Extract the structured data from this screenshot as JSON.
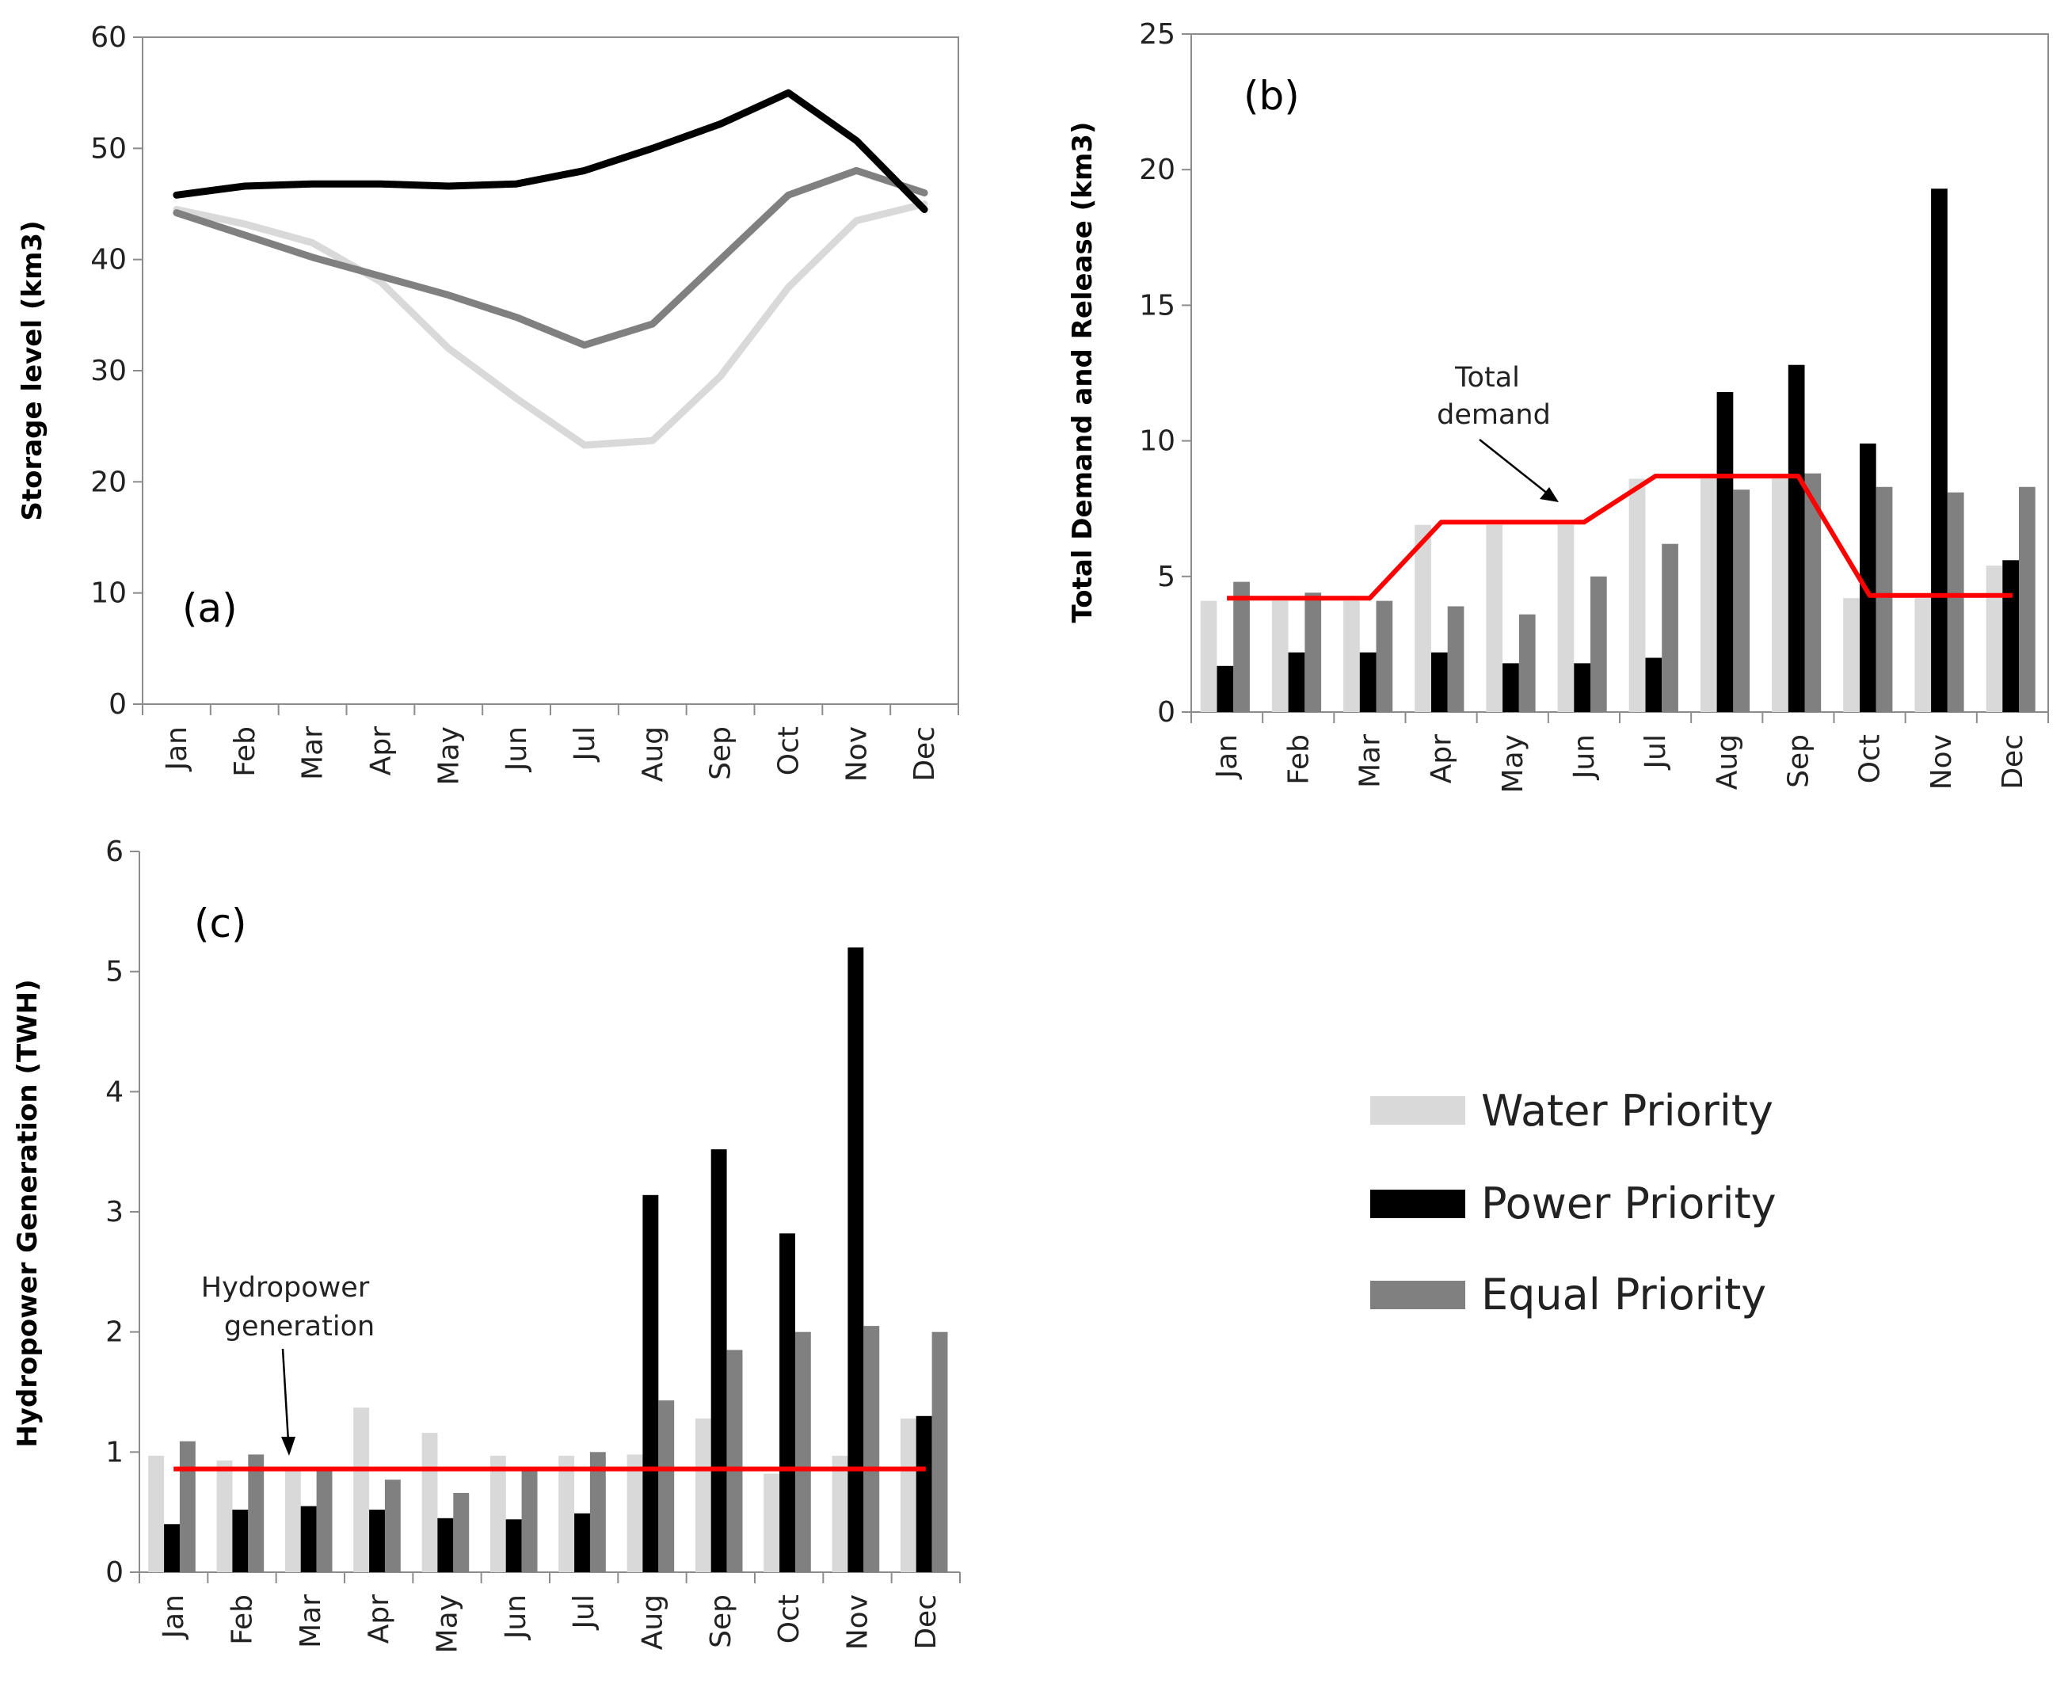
{
  "legend": [
    {
      "label": "Water Priority",
      "color": "#d9d9d9"
    },
    {
      "label": "Power Priority",
      "color": "#000000"
    },
    {
      "label": "Equal Priority",
      "color": "#808080"
    }
  ],
  "chart_data": [
    {
      "type": "line",
      "panel": "(a)",
      "title": "",
      "xlabel": "",
      "ylabel": "Storage level (km3)",
      "ylim": [
        0,
        60
      ],
      "yticks": [
        0,
        10,
        20,
        30,
        40,
        50,
        60
      ],
      "categories": [
        "Jan",
        "Feb",
        "Mar",
        "Apr",
        "May",
        "Jun",
        "Jul",
        "Aug",
        "Sep",
        "Oct",
        "Nov",
        "Dec"
      ],
      "series": [
        {
          "name": "Water Priority",
          "color": "#d9d9d9",
          "values": [
            44.5,
            43.2,
            41.5,
            38.0,
            32.0,
            27.5,
            23.3,
            23.7,
            29.5,
            37.5,
            43.5,
            45.0
          ]
        },
        {
          "name": "Power Priority",
          "color": "#000000",
          "values": [
            45.8,
            46.6,
            46.8,
            46.8,
            46.6,
            46.8,
            48.0,
            50.0,
            52.2,
            55.0,
            50.7,
            44.5
          ]
        },
        {
          "name": "Equal Priority",
          "color": "#808080",
          "values": [
            44.2,
            42.2,
            40.2,
            38.5,
            36.8,
            34.8,
            32.3,
            34.2,
            40.0,
            45.8,
            48.0,
            46.0
          ]
        }
      ]
    },
    {
      "type": "bar",
      "panel": "(b)",
      "title": "",
      "xlabel": "",
      "ylabel": "Total Demand and Release (km3)",
      "ylim": [
        0,
        25
      ],
      "yticks": [
        0,
        5,
        10,
        15,
        20,
        25
      ],
      "categories": [
        "Jan",
        "Feb",
        "Mar",
        "Apr",
        "May",
        "Jun",
        "Jul",
        "Aug",
        "Sep",
        "Oct",
        "Nov",
        "Dec"
      ],
      "series": [
        {
          "name": "Water Priority",
          "color": "#d9d9d9",
          "values": [
            4.1,
            4.1,
            4.1,
            6.9,
            6.9,
            6.9,
            8.6,
            8.6,
            8.6,
            4.2,
            4.2,
            5.4
          ]
        },
        {
          "name": "Power Priority",
          "color": "#000000",
          "values": [
            1.7,
            2.2,
            2.2,
            2.2,
            1.8,
            1.8,
            2.0,
            11.8,
            12.8,
            9.9,
            19.3,
            5.6
          ]
        },
        {
          "name": "Equal Priority",
          "color": "#808080",
          "values": [
            4.8,
            4.4,
            4.1,
            3.9,
            3.6,
            5.0,
            6.2,
            8.2,
            8.8,
            8.3,
            8.1,
            8.3
          ]
        }
      ],
      "reference_line": {
        "name": "Total demand",
        "color": "#ff0000",
        "values": [
          4.2,
          4.2,
          4.2,
          7.0,
          7.0,
          7.0,
          8.7,
          8.7,
          8.7,
          4.3,
          4.3,
          4.3
        ]
      },
      "annotation": {
        "lines": [
          "Total",
          "demand"
        ]
      }
    },
    {
      "type": "bar",
      "panel": "(c)",
      "title": "",
      "xlabel": "",
      "ylabel": "Hydropower Generation (TWH)",
      "ylim": [
        0,
        6
      ],
      "yticks": [
        0,
        1,
        2,
        3,
        4,
        5,
        6
      ],
      "categories": [
        "Jan",
        "Feb",
        "Mar",
        "Apr",
        "May",
        "Jun",
        "Jul",
        "Aug",
        "Sep",
        "Oct",
        "Nov",
        "Dec"
      ],
      "series": [
        {
          "name": "Water Priority",
          "color": "#d9d9d9",
          "values": [
            0.97,
            0.93,
            0.85,
            1.37,
            1.16,
            0.97,
            0.97,
            0.98,
            1.28,
            0.82,
            0.97,
            1.28
          ]
        },
        {
          "name": "Power Priority",
          "color": "#000000",
          "values": [
            0.4,
            0.52,
            0.55,
            0.52,
            0.45,
            0.44,
            0.49,
            3.14,
            3.52,
            2.82,
            5.2,
            1.3
          ]
        },
        {
          "name": "Equal Priority",
          "color": "#808080",
          "values": [
            1.09,
            0.98,
            0.85,
            0.77,
            0.66,
            0.85,
            1.0,
            1.43,
            1.85,
            2.0,
            2.05,
            2.0
          ]
        }
      ],
      "reference_line": {
        "name": "Hydropower generation",
        "color": "#ff0000",
        "values": [
          0.86,
          0.86,
          0.86,
          0.86,
          0.86,
          0.86,
          0.86,
          0.86,
          0.86,
          0.86,
          0.86,
          0.86
        ]
      },
      "annotation": {
        "lines": [
          "Hydropower",
          "generation"
        ]
      }
    }
  ]
}
